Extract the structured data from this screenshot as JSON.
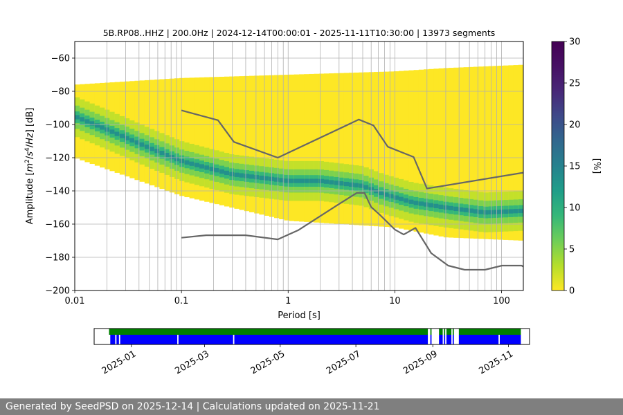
{
  "chart_data": [
    {
      "type": "heatmap",
      "title": "5B.RP08..HHZ | 200.0Hz | 2024-12-14T00:00:01 - 2025-11-11T10:30:00 | 13973 segments",
      "xlabel": "Period [s]",
      "ylabel_parts": [
        "Amplitude [",
        "m",
        "2",
        "/",
        "s",
        "4",
        "/",
        "Hz",
        "] [dB]"
      ],
      "x_scale": "log",
      "xlim": [
        0.01,
        160
      ],
      "ylim": [
        -200,
        -50
      ],
      "x_ticks": [
        {
          "value": 0.01,
          "label": "0.01"
        },
        {
          "value": 0.1,
          "label": "0.1"
        },
        {
          "value": 1,
          "label": "1"
        },
        {
          "value": 10,
          "label": "10"
        },
        {
          "value": 100,
          "label": "100"
        }
      ],
      "y_ticks": [
        {
          "value": -60,
          "label": "−60"
        },
        {
          "value": -80,
          "label": "−80"
        },
        {
          "value": -100,
          "label": "−100"
        },
        {
          "value": -120,
          "label": "−120"
        },
        {
          "value": -140,
          "label": "−140"
        },
        {
          "value": -160,
          "label": "−160"
        },
        {
          "value": -180,
          "label": "−180"
        },
        {
          "value": -200,
          "label": "−200"
        }
      ],
      "grid": true,
      "colormap": "viridis_r",
      "colorbar": {
        "label": "[%]",
        "range": [
          0,
          30
        ],
        "ticks": [
          {
            "value": 0,
            "label": "0"
          },
          {
            "value": 5,
            "label": "5"
          },
          {
            "value": 10,
            "label": "10"
          },
          {
            "value": 15,
            "label": "15"
          },
          {
            "value": 20,
            "label": "20"
          },
          {
            "value": 25,
            "label": "25"
          },
          {
            "value": 30,
            "label": "30"
          }
        ]
      },
      "envelope": {
        "upper_db": [
          -76,
          -72,
          -70,
          -68,
          -66,
          -64
        ],
        "lower_db": [
          -120,
          -143,
          -158,
          -162,
          -168,
          -170
        ],
        "period_anchors": [
          0.01,
          0.1,
          1,
          10,
          30,
          160
        ]
      },
      "mode_curve": {
        "periods": [
          0.01,
          0.02,
          0.05,
          0.1,
          0.3,
          1,
          2,
          5,
          8,
          15,
          30,
          70,
          160
        ],
        "db": [
          -95,
          -103,
          -114,
          -122,
          -130,
          -134,
          -134,
          -137,
          -142,
          -147,
          -150,
          -153,
          -152
        ]
      },
      "series": [
        {
          "periods": [
            0.1,
            0.22,
            0.31,
            0.8,
            4.6,
            6.3,
            8.6,
            15,
            20,
            160
          ],
          "db": [
            -91.5,
            -97.4,
            -110.5,
            -120,
            -97,
            -100.6,
            -113.4,
            -119.6,
            -138.6,
            -129
          ]
        },
        {
          "periods": [
            0.1,
            0.17,
            0.4,
            0.8,
            1.24,
            2.9,
            4.4,
            5.2,
            6,
            7.1,
            10,
            12.1,
            15.6,
            21.9,
            31.6,
            45,
            70,
            101,
            154,
            160
          ],
          "db": [
            -168.2,
            -166.7,
            -166.7,
            -169.2,
            -163.7,
            -148.5,
            -141.2,
            -141.2,
            -149.7,
            -153.9,
            -163.3,
            -166.3,
            -162.3,
            -177.5,
            -185,
            -187.5,
            -187.5,
            -185,
            -185,
            -185.6
          ]
        }
      ]
    },
    {
      "type": "timeline",
      "x_ticks": [
        "2025-01",
        "2025-03",
        "2025-05",
        "2025-07",
        "2025-09",
        "2025-11"
      ],
      "x_tick_dates": [
        "2025-01-01",
        "2025-03-01",
        "2025-05-01",
        "2025-07-01",
        "2025-09-01",
        "2025-11-01"
      ],
      "xlim": [
        "2024-12-02",
        "2025-11-18"
      ],
      "rows": [
        {
          "color": "#008000",
          "intervals": [
            [
              "2024-12-14",
              "2025-08-28"
            ],
            [
              "2025-08-30",
              "2025-08-31"
            ],
            [
              "2025-09-06",
              "2025-09-09"
            ],
            [
              "2025-09-10",
              "2025-09-11"
            ],
            [
              "2025-09-12",
              "2025-09-16"
            ],
            [
              "2025-09-17",
              "2025-09-18"
            ],
            [
              "2025-09-22",
              "2025-11-11"
            ]
          ]
        },
        {
          "color": "#0000ff",
          "intervals": [
            [
              "2024-12-15",
              "2024-12-19"
            ],
            [
              "2024-12-20",
              "2024-12-22"
            ],
            [
              "2024-12-23",
              "2025-02-07"
            ],
            [
              "2025-02-08",
              "2025-03-24"
            ],
            [
              "2025-03-25",
              "2025-08-28"
            ],
            [
              "2025-08-30",
              "2025-08-31"
            ],
            [
              "2025-09-06",
              "2025-09-09"
            ],
            [
              "2025-09-10",
              "2025-09-11"
            ],
            [
              "2025-09-12",
              "2025-09-16"
            ],
            [
              "2025-09-17",
              "2025-09-18"
            ],
            [
              "2025-09-22",
              "2025-10-24"
            ],
            [
              "2025-10-25",
              "2025-11-11"
            ]
          ]
        }
      ]
    }
  ],
  "footer": {
    "text": "Generated by SeedPSD on 2025-12-14 | Calculations updated on 2025-11-21"
  }
}
